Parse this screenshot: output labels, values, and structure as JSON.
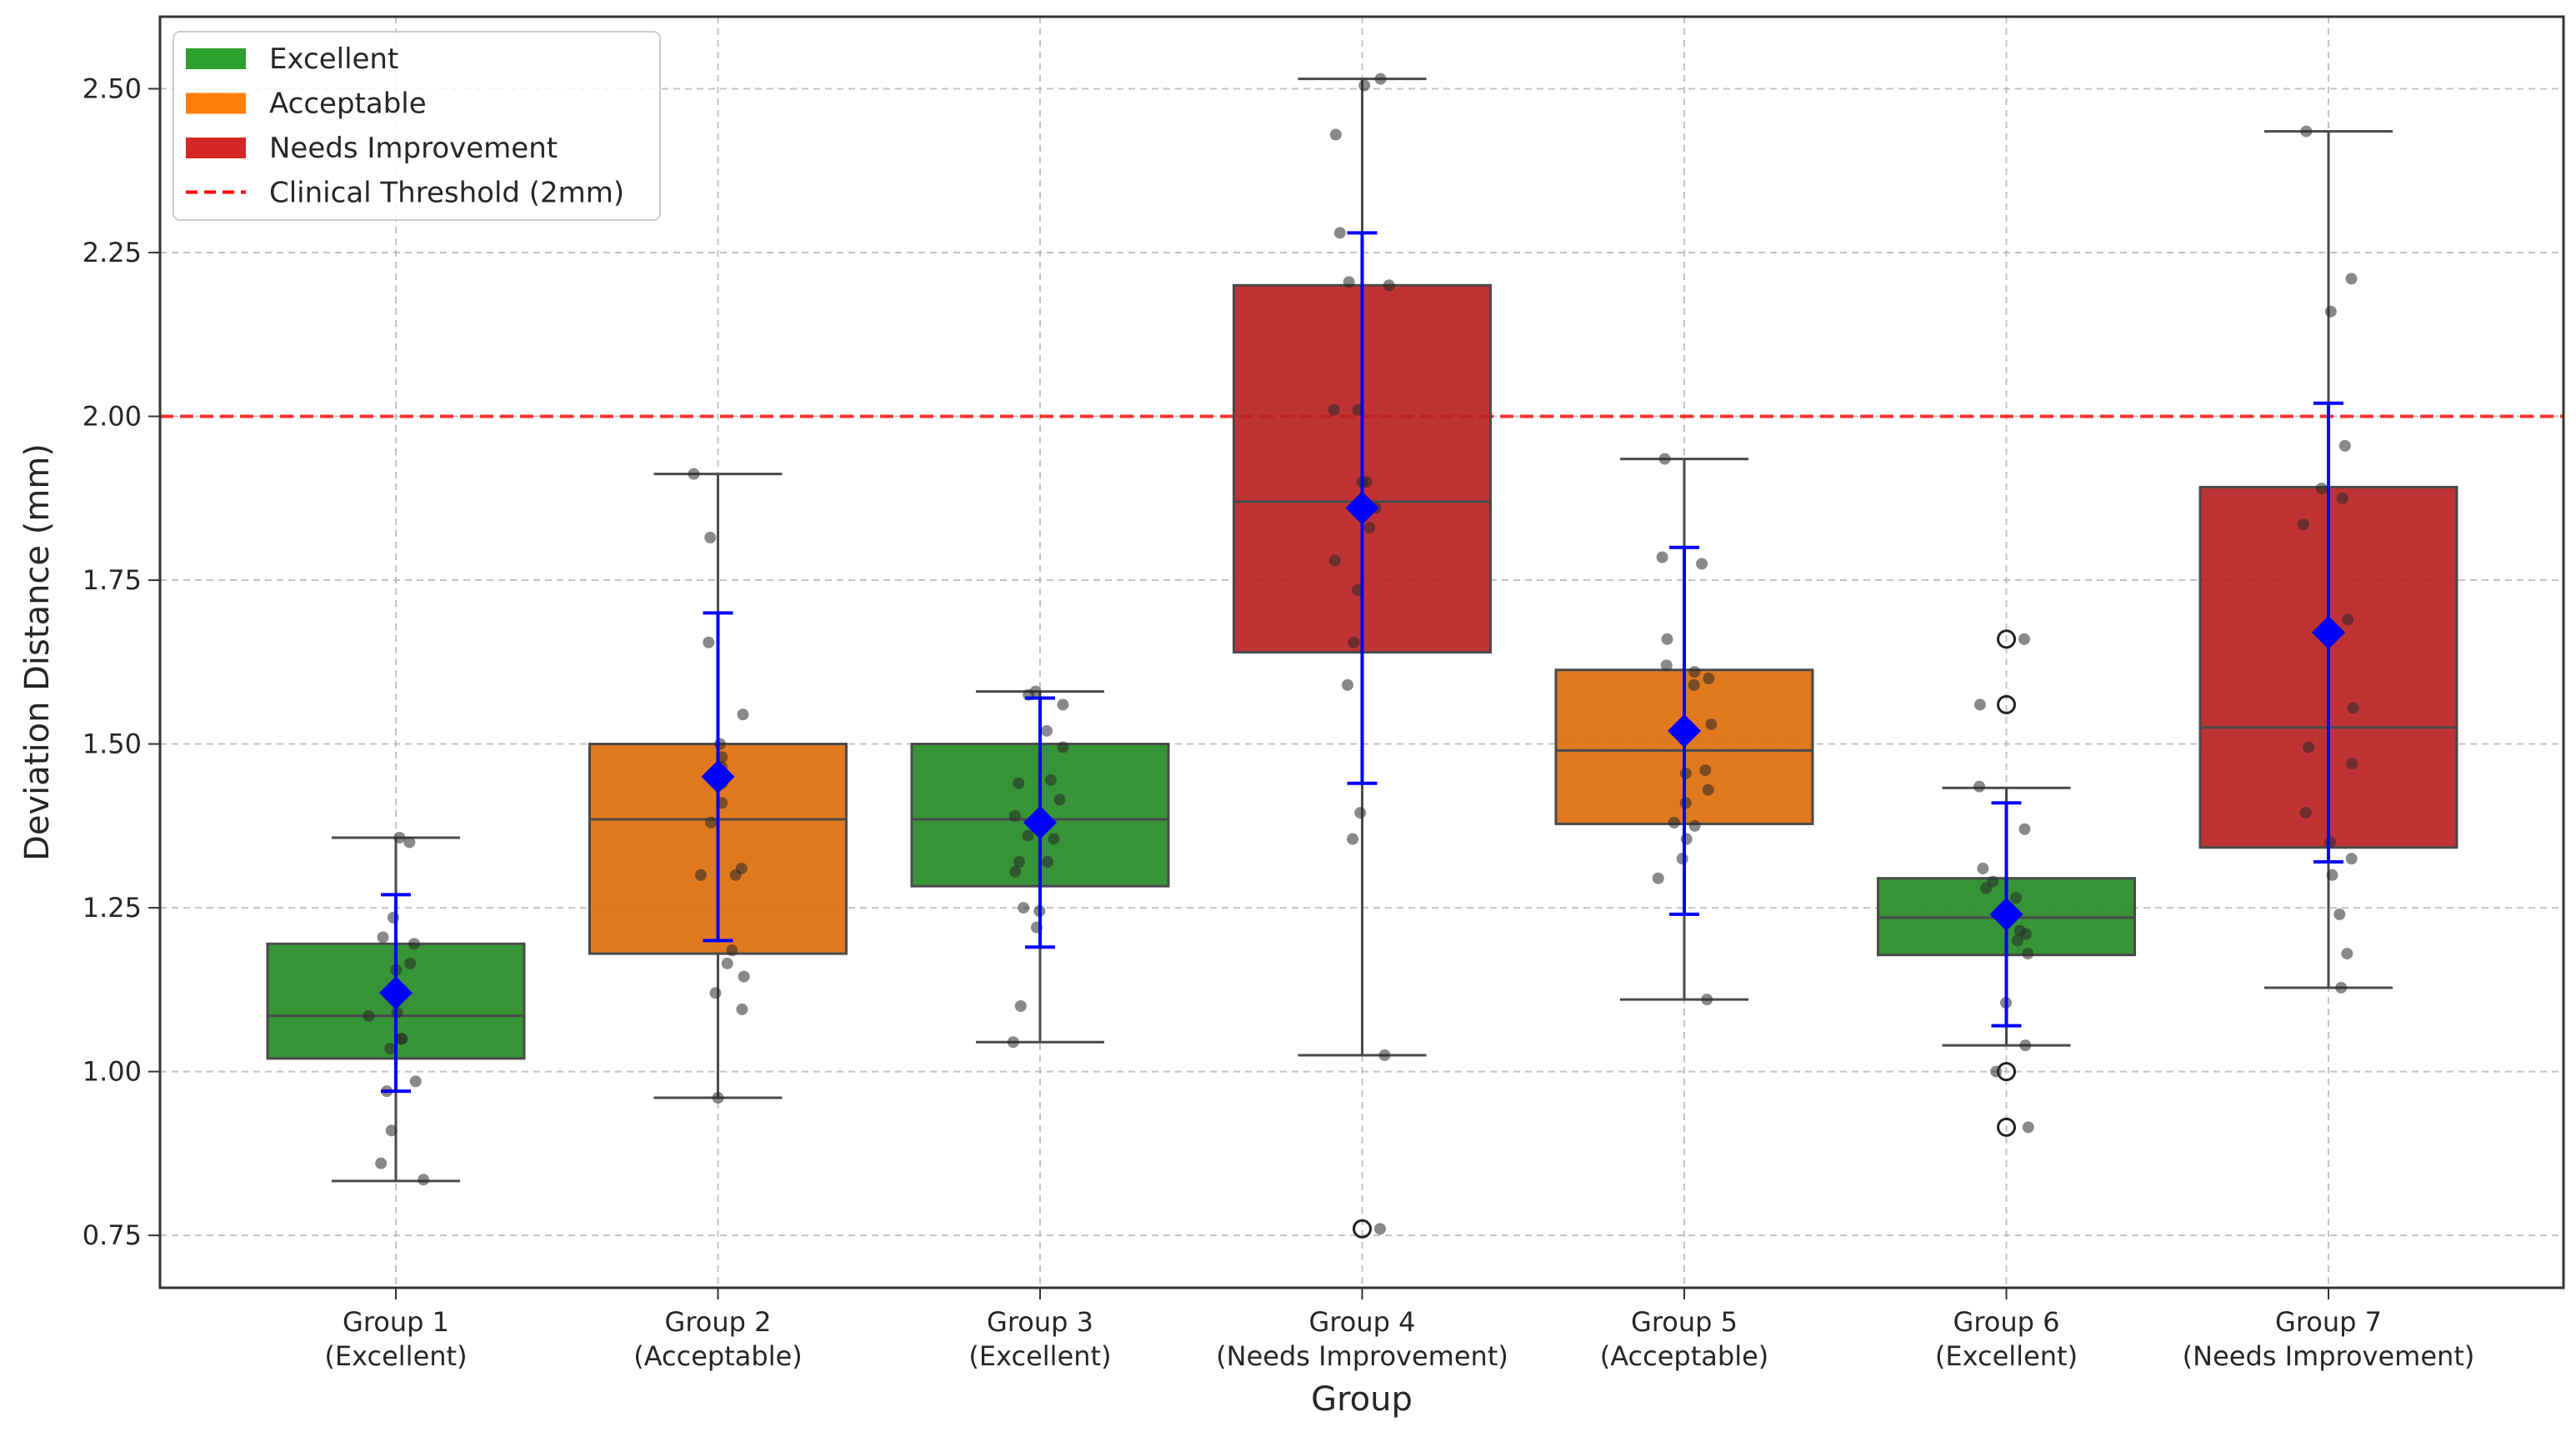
{
  "chart_data": {
    "type": "box",
    "title": "",
    "xlabel": "Group",
    "ylabel": "Deviation Distance (mm)",
    "ylim": [
      0.67,
      2.61
    ],
    "yticks": [
      "0.75",
      "1.00",
      "1.25",
      "1.50",
      "1.75",
      "2.00",
      "2.25",
      "2.50"
    ],
    "grid": true,
    "threshold": {
      "value": 2.0,
      "label": "Clinical Threshold (2mm)",
      "color": "#ff0000"
    },
    "categories_colors": {
      "Excellent": "#2ca02c",
      "Acceptable": "#ff7f0e",
      "Needs Improvement": "#d62728"
    },
    "legend": [
      {
        "label": "Excellent",
        "color": "#2ca02c",
        "kind": "patch"
      },
      {
        "label": "Acceptable",
        "color": "#ff7f0e",
        "kind": "patch"
      },
      {
        "label": "Needs Improvement",
        "color": "#d62728",
        "kind": "patch"
      },
      {
        "label": "Clinical Threshold (2mm)",
        "color": "#ff0000",
        "kind": "dashed"
      }
    ],
    "groups": [
      {
        "name": "Group 1",
        "category": "Excellent",
        "tick_line1": "Group 1",
        "tick_line2": "(Excellent)",
        "q1": 1.02,
        "median": 1.085,
        "q3": 1.195,
        "whisker_low": 0.833,
        "whisker_high": 1.357,
        "mean": 1.12,
        "sd_low": 0.97,
        "sd_high": 1.27,
        "outliers": [],
        "points": [
          1.35,
          1.357,
          1.235,
          1.205,
          1.195,
          1.165,
          1.155,
          1.12,
          1.09,
          1.085,
          1.05,
          1.05,
          1.035,
          0.985,
          0.97,
          0.91,
          0.86,
          0.835
        ]
      },
      {
        "name": "Group 2",
        "category": "Acceptable",
        "tick_line1": "Group 2",
        "tick_line2": "(Acceptable)",
        "q1": 1.18,
        "median": 1.385,
        "q3": 1.5,
        "whisker_low": 0.96,
        "whisker_high": 1.912,
        "mean": 1.45,
        "sd_low": 1.2,
        "sd_high": 1.7,
        "outliers": [],
        "points": [
          1.912,
          1.815,
          1.655,
          1.545,
          1.5,
          1.48,
          1.465,
          1.44,
          1.41,
          1.38,
          1.31,
          1.3,
          1.3,
          1.185,
          1.165,
          1.145,
          1.12,
          1.095,
          0.96
        ]
      },
      {
        "name": "Group 3",
        "category": "Excellent",
        "tick_line1": "Group 3",
        "tick_line2": "(Excellent)",
        "q1": 1.283,
        "median": 1.385,
        "q3": 1.5,
        "whisker_low": 1.045,
        "whisker_high": 1.58,
        "mean": 1.38,
        "sd_low": 1.19,
        "sd_high": 1.57,
        "outliers": [],
        "points": [
          1.58,
          1.575,
          1.56,
          1.52,
          1.495,
          1.445,
          1.44,
          1.415,
          1.39,
          1.36,
          1.355,
          1.32,
          1.32,
          1.305,
          1.25,
          1.245,
          1.22,
          1.1,
          1.045
        ]
      },
      {
        "name": "Group 4",
        "category": "Needs Improvement",
        "tick_line1": "Group 4",
        "tick_line2": "(Needs Improvement)",
        "q1": 1.64,
        "median": 1.87,
        "q3": 2.2,
        "whisker_low": 1.025,
        "whisker_high": 2.515,
        "mean": 1.86,
        "sd_low": 1.44,
        "sd_high": 2.28,
        "outliers": [
          0.76
        ],
        "points": [
          2.515,
          2.505,
          2.43,
          2.28,
          2.205,
          2.2,
          2.01,
          2.01,
          1.9,
          1.9,
          1.86,
          1.83,
          1.78,
          1.735,
          1.655,
          1.59,
          1.395,
          1.355,
          1.025,
          0.76
        ]
      },
      {
        "name": "Group 5",
        "category": "Acceptable",
        "tick_line1": "Group 5",
        "tick_line2": "(Acceptable)",
        "q1": 1.378,
        "median": 1.49,
        "q3": 1.613,
        "whisker_low": 1.11,
        "whisker_high": 1.935,
        "mean": 1.52,
        "sd_low": 1.24,
        "sd_high": 1.8,
        "outliers": [],
        "points": [
          1.935,
          1.785,
          1.775,
          1.66,
          1.62,
          1.61,
          1.6,
          1.59,
          1.53,
          1.46,
          1.455,
          1.43,
          1.41,
          1.38,
          1.375,
          1.355,
          1.325,
          1.295,
          1.11
        ]
      },
      {
        "name": "Group 6",
        "category": "Excellent",
        "tick_line1": "Group 6",
        "tick_line2": "(Excellent)",
        "q1": 1.178,
        "median": 1.235,
        "q3": 1.295,
        "whisker_low": 1.04,
        "whisker_high": 1.433,
        "mean": 1.24,
        "sd_low": 1.07,
        "sd_high": 1.41,
        "outliers": [
          1.66,
          1.56,
          1.0,
          0.915
        ],
        "points": [
          1.66,
          1.56,
          1.435,
          1.37,
          1.31,
          1.29,
          1.28,
          1.265,
          1.245,
          1.215,
          1.21,
          1.2,
          1.18,
          1.105,
          1.04,
          1.0,
          0.915
        ]
      },
      {
        "name": "Group 7",
        "category": "Needs Improvement",
        "tick_line1": "Group 7",
        "tick_line2": "(Needs Improvement)",
        "q1": 1.342,
        "median": 1.525,
        "q3": 1.892,
        "whisker_low": 1.128,
        "whisker_high": 2.435,
        "mean": 1.67,
        "sd_low": 1.32,
        "sd_high": 2.02,
        "outliers": [],
        "points": [
          2.435,
          2.21,
          2.16,
          1.955,
          1.89,
          1.875,
          1.835,
          1.69,
          1.555,
          1.495,
          1.47,
          1.395,
          1.35,
          1.325,
          1.3,
          1.24,
          1.18,
          1.128
        ]
      }
    ]
  }
}
